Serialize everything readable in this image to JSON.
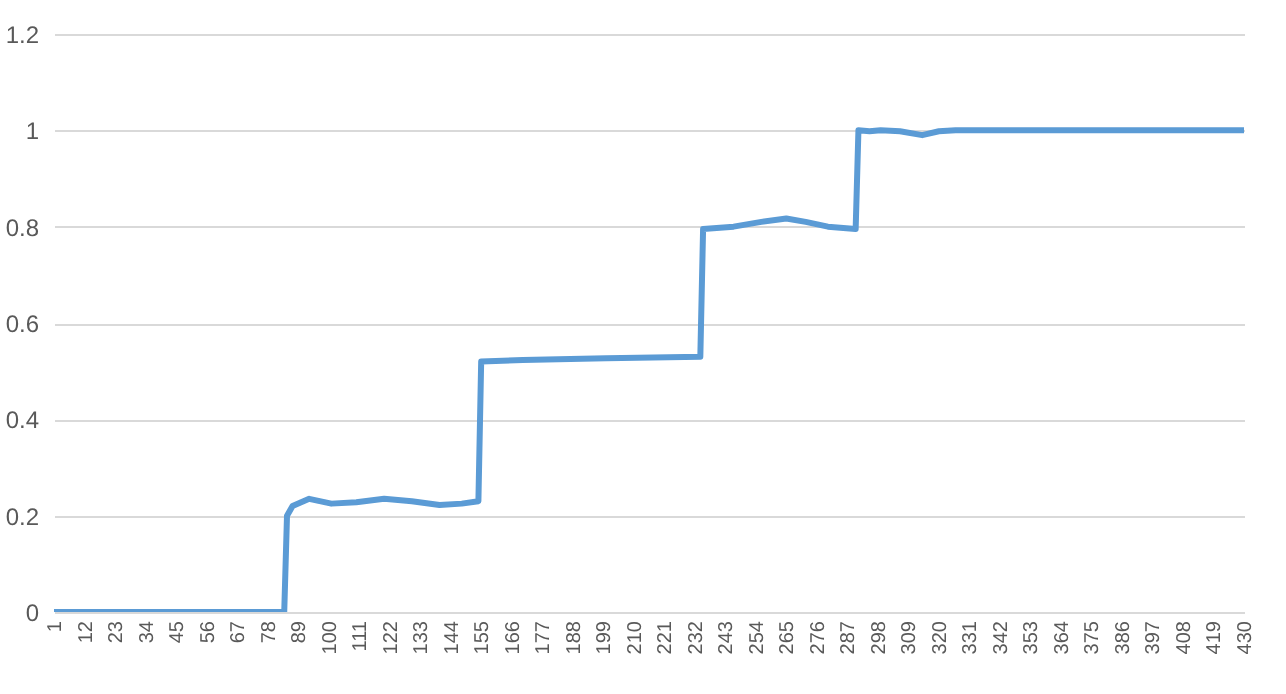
{
  "chart_data": {
    "type": "line",
    "x": [
      1,
      84,
      85,
      87,
      93,
      101,
      110,
      120,
      130,
      140,
      148,
      154,
      155,
      170,
      200,
      234,
      235,
      246,
      256,
      265,
      272,
      280,
      290,
      291,
      295,
      299,
      306,
      314,
      320,
      326,
      360,
      400,
      430
    ],
    "series": [
      {
        "color": "#5b9bd5",
        "values": [
          0,
          0,
          0.2,
          0.22,
          0.235,
          0.225,
          0.228,
          0.235,
          0.23,
          0.222,
          0.225,
          0.23,
          0.52,
          0.523,
          0.527,
          0.53,
          0.795,
          0.8,
          0.81,
          0.817,
          0.81,
          0.8,
          0.795,
          1.0,
          0.998,
          1.0,
          0.998,
          0.99,
          0.998,
          1.0,
          1.0,
          1.0,
          1.0
        ]
      }
    ],
    "xlim": [
      1,
      430
    ],
    "xticks": [
      1,
      12,
      23,
      34,
      45,
      56,
      67,
      78,
      89,
      100,
      111,
      122,
      133,
      144,
      155,
      166,
      177,
      188,
      199,
      210,
      221,
      232,
      243,
      254,
      265,
      276,
      287,
      298,
      309,
      320,
      331,
      342,
      353,
      364,
      375,
      386,
      397,
      408,
      419,
      430
    ],
    "ylim": [
      0,
      1.2
    ],
    "yticks": [
      0,
      0.2,
      0.4,
      0.6,
      0.8,
      1,
      1.2
    ],
    "grid": "y",
    "line_style": "solid"
  }
}
